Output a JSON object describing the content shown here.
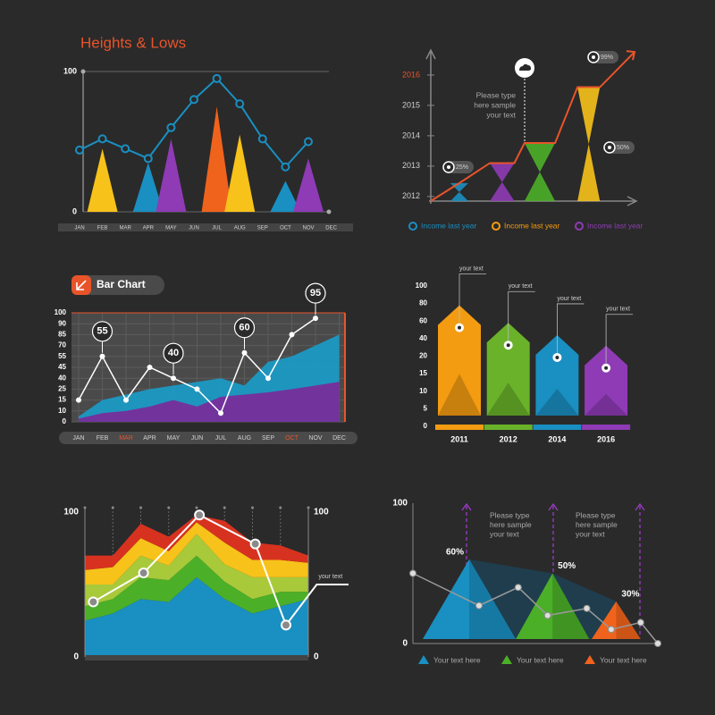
{
  "chart_data": [
    {
      "type": "combo",
      "title": "Heights & Lows",
      "title_color": "#e8542a",
      "categories": [
        "JAN",
        "FEB",
        "MAR",
        "APR",
        "MAY",
        "JUN",
        "JUL",
        "AUG",
        "SEP",
        "OCT",
        "NOV",
        "DEC"
      ],
      "ylim": [
        0,
        100
      ],
      "yticks": [
        0,
        100
      ],
      "grid": true,
      "peaks": {
        "values": [
          null,
          45,
          null,
          35,
          52,
          null,
          75,
          55,
          null,
          22,
          38,
          null
        ],
        "colors": [
          null,
          "#f7c21a",
          null,
          "#1a8fc1",
          "#8e3bb5",
          null,
          "#f0631c",
          "#f7c21a",
          null,
          "#1a8fc1",
          "#8e3bb5",
          null
        ]
      },
      "line": {
        "color": "#1a8fc1",
        "values": [
          44,
          52,
          45,
          38,
          60,
          80,
          95,
          77,
          52,
          32,
          50,
          null
        ]
      }
    },
    {
      "type": "step-line",
      "xlim": [
        0,
        10
      ],
      "ylim": [
        2011.7,
        2017
      ],
      "yticks": [
        2012,
        2013,
        2014,
        2015,
        2016
      ],
      "highlight_tick_index": 4,
      "highlight_color": "#e8542a",
      "x": [
        0,
        1.4,
        2.9,
        4.1,
        4.6,
        6.1,
        7.2,
        8.3,
        10
      ],
      "values": [
        2011.85,
        2012.44,
        2013.1,
        2013.1,
        2013.76,
        2013.76,
        2015.6,
        2015.6,
        2016.76
      ],
      "color": "#e8542a",
      "funnel_colors": [
        "#1a8fc1",
        "#8e3bb5",
        "#4caf28",
        "#f7c21a"
      ],
      "annotations": [
        "25%",
        "50%",
        "99%"
      ],
      "note": [
        "Please type",
        "here sample",
        "your text"
      ],
      "legend": [
        {
          "name": "Income last year",
          "color": "#1a8fc1"
        },
        {
          "name": "Income last year",
          "color": "#f39c12"
        },
        {
          "name": "Income last year",
          "color": "#8e3bb5"
        }
      ]
    },
    {
      "type": "area",
      "title": "Bar Chart",
      "scale": "tick-spaced",
      "categories": [
        "JAN",
        "FEB",
        "MAR",
        "APR",
        "MAY",
        "JUN",
        "JUL",
        "AUG",
        "SEP",
        "OCT",
        "NOV",
        "DEC"
      ],
      "highlight_indices": [
        2,
        9
      ],
      "highlight_color": "#e8542a",
      "ylim": [
        0,
        100
      ],
      "yticks": [
        0,
        10,
        15,
        25,
        40,
        45,
        55,
        70,
        85,
        90,
        100
      ],
      "grid": true,
      "series": [
        {
          "color": "#1a9bc7",
          "values": [
            5,
            15,
            20,
            25,
            30,
            35,
            40,
            30,
            50,
            55,
            70,
            85
          ]
        },
        {
          "color": "#7a2a9a",
          "values": [
            3,
            8,
            10,
            12,
            15,
            12,
            18,
            20,
            22,
            25,
            30,
            35
          ]
        }
      ],
      "line": {
        "color": "#ffffff",
        "values": [
          15,
          55,
          15,
          45,
          40,
          25,
          8,
          60,
          40,
          85,
          95,
          null
        ],
        "value_labels": [
          null,
          "55",
          null,
          null,
          "40",
          null,
          null,
          "60",
          null,
          null,
          "95",
          null
        ]
      }
    },
    {
      "type": "bar",
      "scale": "tick-spaced",
      "categories": [
        "2011",
        "2012",
        "2014",
        "2016"
      ],
      "values": [
        78,
        58,
        44,
        32
      ],
      "colors": [
        "#f39c12",
        "#6ab22a",
        "#1a8fc1",
        "#8e3bb5"
      ],
      "ylim": [
        0,
        100
      ],
      "yticks": [
        0,
        5,
        10,
        15,
        20,
        40,
        60,
        80,
        100
      ],
      "notes": [
        "your text",
        "your text",
        "your text",
        "your text"
      ]
    },
    {
      "type": "stacked-area",
      "xlim": [
        0,
        8
      ],
      "ylim": [
        0,
        100
      ],
      "yticks": [
        0,
        100
      ],
      "y2lim": [
        0,
        100
      ],
      "y2ticks": [
        0,
        100
      ],
      "x": [
        0,
        1,
        2,
        3,
        4,
        5,
        6,
        7,
        8
      ],
      "series": [
        {
          "color": "#1a8fc1",
          "values": [
            25,
            30,
            40,
            38,
            55,
            40,
            30,
            35,
            40
          ]
        },
        {
          "color": "#4caf28",
          "values": [
            10,
            10,
            15,
            15,
            15,
            12,
            10,
            10,
            5
          ]
        },
        {
          "color": "#a8c93a",
          "values": [
            15,
            10,
            15,
            10,
            15,
            12,
            15,
            10,
            10
          ]
        },
        {
          "color": "#f7c21a",
          "values": [
            10,
            12,
            12,
            10,
            8,
            15,
            12,
            12,
            10
          ]
        },
        {
          "color": "#d7321f",
          "values": [
            10,
            8,
            10,
            10,
            5,
            15,
            12,
            10,
            5
          ]
        }
      ],
      "line": {
        "color": "#ffffff",
        "x": [
          0.3,
          2.1,
          4.1,
          6.1,
          7.2,
          8.3
        ],
        "values": [
          38,
          58,
          98,
          78,
          22,
          50
        ]
      },
      "note": "your text"
    },
    {
      "type": "triangle-area",
      "xlim": [
        0,
        10
      ],
      "ylim": [
        0,
        100
      ],
      "yticks": [
        0,
        100
      ],
      "peaks": {
        "x": [
          2.3,
          5.7,
          8.3
        ],
        "values": [
          60,
          50,
          30
        ],
        "value_labels": [
          "60%",
          "50%",
          "30%"
        ],
        "colors": [
          "#1a8fc1",
          "#4caf28",
          "#f0631c"
        ]
      },
      "line": {
        "color": "#9a9a9a",
        "x": [
          0,
          2.7,
          4.3,
          5.5,
          7.1,
          8.1,
          9.3,
          10
        ],
        "values": [
          50,
          27,
          40,
          20,
          25,
          10,
          15,
          0
        ]
      },
      "notes": [
        [
          "Please type",
          "here sample",
          "your text"
        ],
        [
          "Please type",
          "here sample",
          "your text"
        ]
      ],
      "legend": [
        {
          "name": "Your text here",
          "color": "#1a8fc1"
        },
        {
          "name": "Your text here",
          "color": "#4caf28"
        },
        {
          "name": "Your text here",
          "color": "#f0631c"
        }
      ]
    }
  ]
}
